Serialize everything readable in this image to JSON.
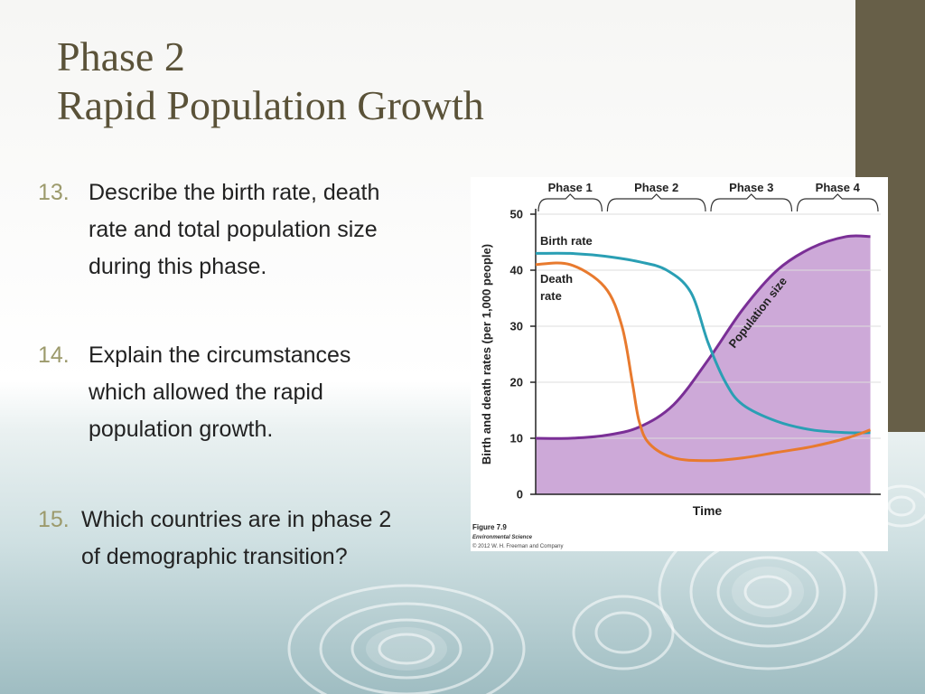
{
  "slide": {
    "title_line1": "Phase 2",
    "title_line2": "Rapid Population Growth",
    "accent_color": "#675f48",
    "title_color": "#5a5238",
    "number_color": "#9c9a6c"
  },
  "questions": [
    {
      "number": "13.",
      "lines": [
        "Describe the birth rate, death",
        "rate and total population size",
        "during this phase."
      ]
    },
    {
      "number": "14.",
      "lines": [
        "Explain the circumstances",
        "which allowed the rapid",
        "population growth."
      ]
    },
    {
      "number": "15.",
      "lines": [
        "Which countries are in phase 2",
        "of demographic transition?"
      ]
    }
  ],
  "chart_data": {
    "type": "line",
    "ylabel": "Birth and death rates (per 1,000 people)",
    "xlabel": "Time",
    "ylim": [
      0,
      50
    ],
    "yticks": [
      0,
      10,
      20,
      30,
      40,
      50
    ],
    "xlim": [
      0,
      100
    ],
    "phases": [
      {
        "label": "Phase 1",
        "start": 0,
        "end": 20
      },
      {
        "label": "Phase 2",
        "start": 20,
        "end": 50
      },
      {
        "label": "Phase 3",
        "start": 50,
        "end": 75
      },
      {
        "label": "Phase 4",
        "start": 75,
        "end": 100
      }
    ],
    "series": [
      {
        "name": "Birth rate",
        "color": "#2a9fb4",
        "x": [
          0,
          10,
          20,
          30,
          38,
          45,
          50,
          55,
          60,
          70,
          80,
          90,
          97
        ],
        "y": [
          43,
          43,
          42.5,
          41.5,
          40,
          36,
          27,
          20,
          16,
          13,
          11.5,
          11,
          11
        ]
      },
      {
        "name": "Death rate",
        "color": "#e87a2e",
        "x": [
          0,
          10,
          20,
          25,
          28,
          30,
          33,
          40,
          50,
          60,
          70,
          80,
          90,
          97
        ],
        "y": [
          41,
          41,
          37,
          30,
          20,
          13,
          9,
          6.5,
          6,
          6.5,
          7.5,
          8.5,
          10,
          11.5
        ]
      },
      {
        "name": "Population size",
        "color": "#7a2f96",
        "fill": "#cda9d8",
        "x": [
          0,
          10,
          20,
          30,
          40,
          50,
          60,
          70,
          80,
          90,
          97
        ],
        "y": [
          10,
          10,
          10.5,
          12,
          16,
          24,
          33,
          40,
          44,
          46,
          46
        ]
      }
    ]
  },
  "figure_caption": {
    "label": "Figure 7.9",
    "source": "Environmental Science",
    "copyright": "© 2012 W. H. Freeman and Company"
  }
}
